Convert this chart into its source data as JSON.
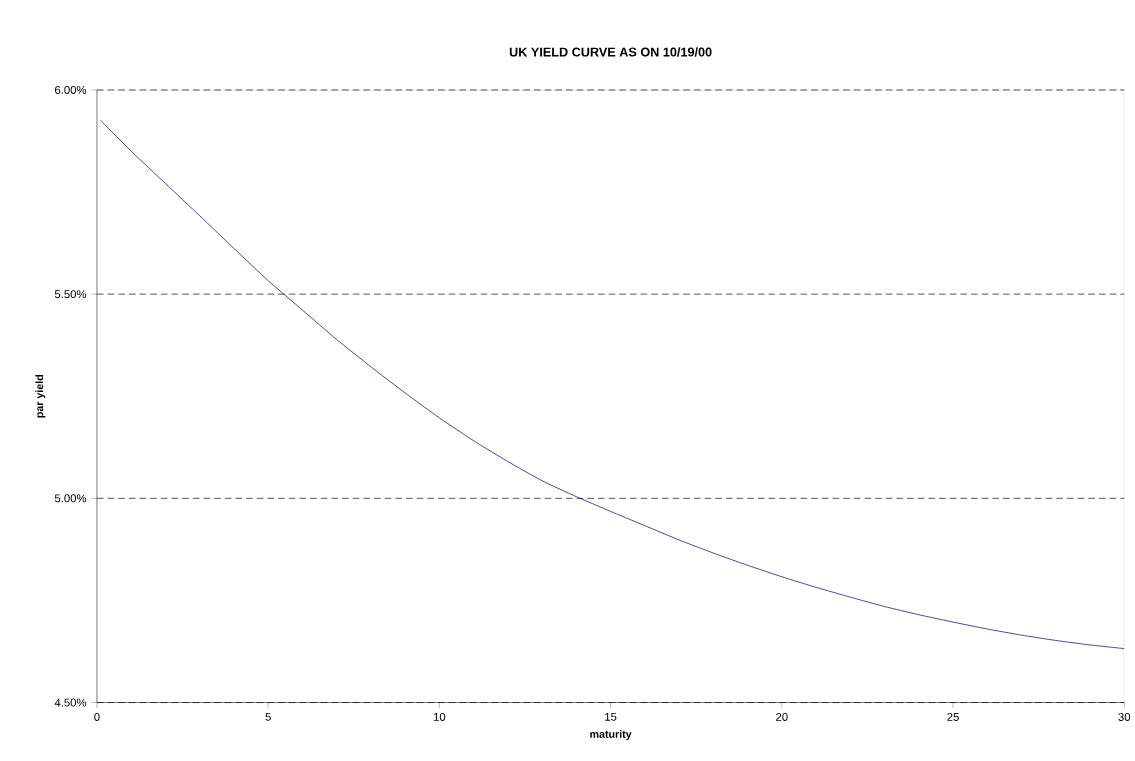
{
  "chart_data": {
    "type": "line",
    "title": "UK  YIELD CURVE AS ON 10/19/00",
    "xlabel": "maturity",
    "ylabel": "par yield",
    "x": [
      0.1,
      1,
      2,
      3,
      4,
      5,
      6,
      7,
      8,
      9,
      10,
      11,
      12,
      13,
      14,
      15,
      16,
      17,
      18,
      19,
      20,
      21,
      22,
      23,
      24,
      25,
      26,
      27,
      28,
      29,
      30
    ],
    "series": [
      {
        "color": "#1a1a8c",
        "values": [
          5.926,
          5.85,
          5.771,
          5.692,
          5.612,
          5.533,
          5.461,
          5.389,
          5.322,
          5.258,
          5.197,
          5.141,
          5.09,
          5.043,
          5.004,
          4.968,
          4.933,
          4.898,
          4.866,
          4.836,
          4.808,
          4.782,
          4.758,
          4.735,
          4.715,
          4.697,
          4.68,
          4.665,
          4.652,
          4.641,
          4.632
        ]
      }
    ],
    "xlim": [
      0,
      30
    ],
    "xticks": [
      0,
      5,
      10,
      15,
      20,
      25,
      30
    ],
    "ylim": [
      4.5,
      6.0
    ],
    "yticks": [
      {
        "value": 4.5,
        "label": "4.50%"
      },
      {
        "value": 5.0,
        "label": "5.00%"
      },
      {
        "value": 5.5,
        "label": "5.50%"
      },
      {
        "value": 6.0,
        "label": "6.00%"
      }
    ],
    "grid": "y",
    "marker": "none",
    "line_style": "solid"
  }
}
